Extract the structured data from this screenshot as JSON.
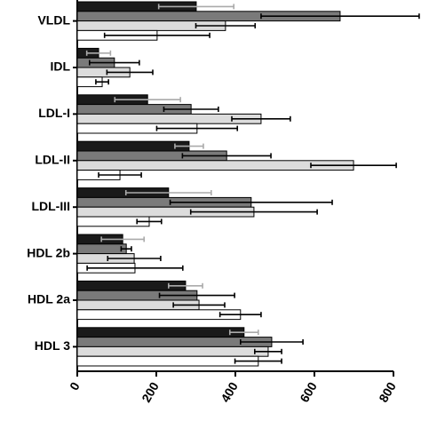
{
  "chart_data": {
    "type": "hbar",
    "categories": [
      "VLDL",
      "IDL",
      "LDL-I",
      "LDL-II",
      "LDL-III",
      "HDL 2b",
      "HDL 2a",
      "HDL 3"
    ],
    "series": [
      {
        "color": "#1a1a1a",
        "error_color": "#aaaaaa",
        "values": [
          301,
          54,
          178,
          283,
          231,
          115,
          274,
          422
        ],
        "errors": [
          95,
          30,
          83,
          36,
          108,
          54,
          43,
          36
        ]
      },
      {
        "color": "#7a7a7a",
        "error_color": "#000000",
        "values": [
          665,
          94,
          288,
          378,
          440,
          124,
          303,
          492
        ],
        "errors": [
          200,
          63,
          69,
          112,
          205,
          13,
          95,
          79
        ]
      },
      {
        "color": "#dcdcdc",
        "error_color": "#000000",
        "values": [
          375,
          133,
          465,
          699,
          447,
          144,
          308,
          483
        ],
        "errors": [
          75,
          58,
          74,
          108,
          160,
          67,
          65,
          34
        ]
      },
      {
        "color": "#ffffff",
        "error_color": "#000000",
        "values": [
          202,
          63,
          303,
          108,
          182,
          146,
          413,
          458
        ],
        "errors": [
          133,
          16,
          102,
          54,
          31,
          121,
          52,
          59
        ]
      }
    ],
    "xlim": [
      0,
      800
    ],
    "xticks": [
      0,
      200,
      400,
      600,
      800
    ]
  }
}
